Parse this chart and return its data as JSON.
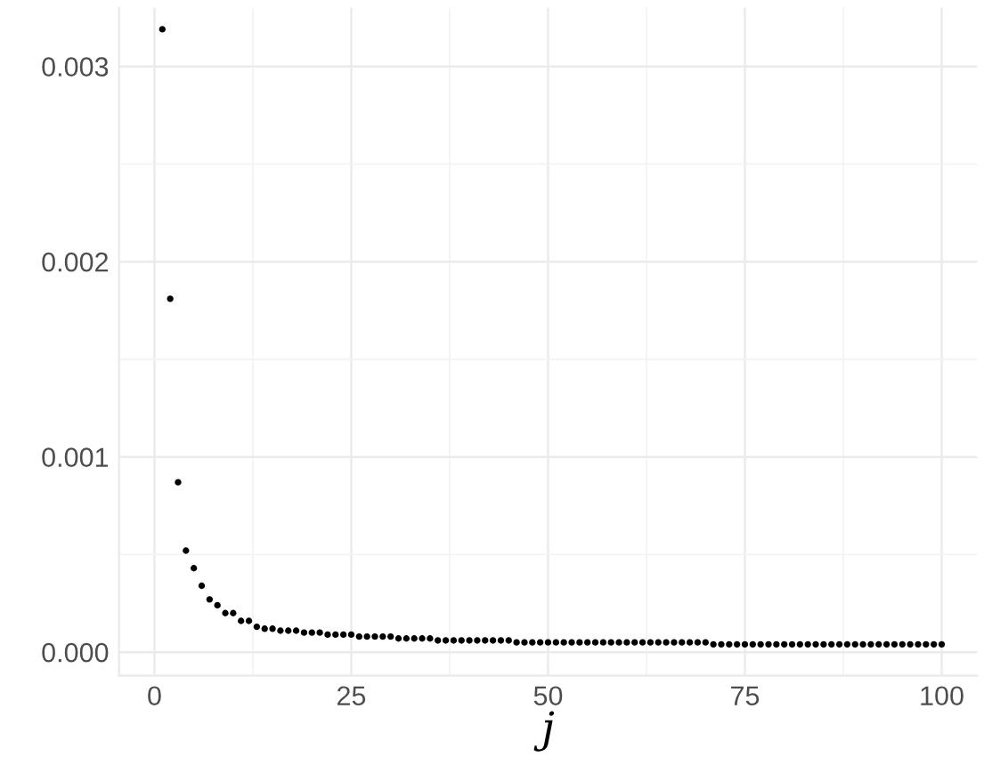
{
  "chart_data": {
    "type": "scatter",
    "xlabel": "j",
    "x": [
      1,
      2,
      3,
      4,
      5,
      6,
      7,
      8,
      9,
      10,
      11,
      12,
      13,
      14,
      15,
      16,
      17,
      18,
      19,
      20,
      21,
      22,
      23,
      24,
      25,
      26,
      27,
      28,
      29,
      30,
      31,
      32,
      33,
      34,
      35,
      36,
      37,
      38,
      39,
      40,
      41,
      42,
      43,
      44,
      45,
      46,
      47,
      48,
      49,
      50,
      51,
      52,
      53,
      54,
      55,
      56,
      57,
      58,
      59,
      60,
      61,
      62,
      63,
      64,
      65,
      66,
      67,
      68,
      69,
      70,
      71,
      72,
      73,
      74,
      75,
      76,
      77,
      78,
      79,
      80,
      81,
      82,
      83,
      84,
      85,
      86,
      87,
      88,
      89,
      90,
      91,
      92,
      93,
      94,
      95,
      96,
      97,
      98,
      99,
      100
    ],
    "values": [
      0.00319,
      0.00181,
      0.00087,
      0.00052,
      0.00043,
      0.00034,
      0.00027,
      0.00024,
      0.0002,
      0.0002,
      0.00016,
      0.00016,
      0.00013,
      0.00012,
      0.00012,
      0.00011,
      0.00011,
      0.00011,
      0.0001,
      0.0001,
      0.0001,
      9e-05,
      9e-05,
      9e-05,
      9e-05,
      8e-05,
      8e-05,
      8e-05,
      8e-05,
      8e-05,
      7e-05,
      7e-05,
      7e-05,
      7e-05,
      7e-05,
      6e-05,
      6e-05,
      6e-05,
      6e-05,
      6e-05,
      6e-05,
      6e-05,
      6e-05,
      6e-05,
      6e-05,
      5e-05,
      5e-05,
      5e-05,
      5e-05,
      5e-05,
      5e-05,
      5e-05,
      5e-05,
      5e-05,
      5e-05,
      5e-05,
      5e-05,
      5e-05,
      5e-05,
      5e-05,
      5e-05,
      5e-05,
      5e-05,
      5e-05,
      5e-05,
      5e-05,
      5e-05,
      5e-05,
      5e-05,
      5e-05,
      4e-05,
      4e-05,
      4e-05,
      4e-05,
      4e-05,
      4e-05,
      4e-05,
      4e-05,
      4e-05,
      4e-05,
      4e-05,
      4e-05,
      4e-05,
      4e-05,
      4e-05,
      4e-05,
      4e-05,
      4e-05,
      4e-05,
      4e-05,
      4e-05,
      4e-05,
      4e-05,
      4e-05,
      4e-05,
      4e-05,
      4e-05,
      4e-05,
      4e-05,
      4e-05
    ],
    "color": "#000000",
    "marker": "circle",
    "grid": true,
    "xlim": [
      -4.5,
      104.5
    ],
    "ylim": [
      -0.00012,
      0.0033
    ],
    "xticks": [
      0,
      25,
      50,
      75,
      100
    ],
    "yticks": [
      {
        "value": 0,
        "label": "0.000"
      },
      {
        "value": 0.001,
        "label": "0.001"
      },
      {
        "value": 0.002,
        "label": "0.002"
      },
      {
        "value": 0.003,
        "label": "0.003"
      }
    ]
  }
}
